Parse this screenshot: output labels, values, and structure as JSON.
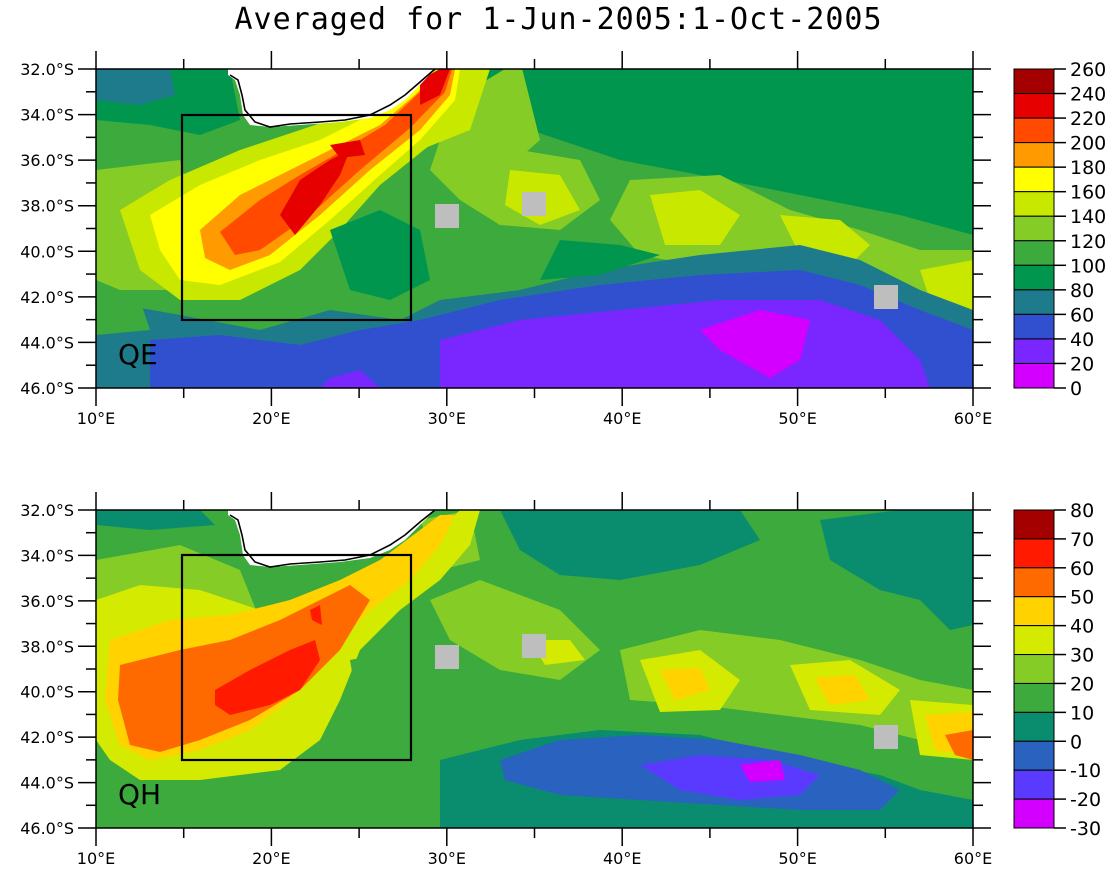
{
  "title": "Averaged for 1-Jun-2005:1-Oct-2005",
  "lon_labels": [
    "10°E",
    "20°E",
    "30°E",
    "40°E",
    "50°E",
    "60°E"
  ],
  "lat_labels": [
    "32.0°S",
    "34.0°S",
    "36.0°S",
    "38.0°S",
    "40.0°S",
    "42.0°S",
    "44.0°S",
    "46.0°S"
  ],
  "box_region": {
    "lon": [
      15,
      28
    ],
    "lat": [
      -34,
      -43
    ]
  },
  "gray_markers": [
    {
      "lon": 30,
      "lat": -38.5
    },
    {
      "lon": 35,
      "lat": -38
    },
    {
      "lon": 55,
      "lat": -42
    }
  ],
  "panels": [
    {
      "label": "QE",
      "colorbar": {
        "levels": [
          "260",
          "240",
          "220",
          "200",
          "180",
          "160",
          "140",
          "120",
          "100",
          "80",
          "60",
          "40",
          "20",
          "0"
        ],
        "colors": [
          "#a50000",
          "#e60000",
          "#ff4a00",
          "#ff9a00",
          "#ffff00",
          "#c8e800",
          "#85cc26",
          "#3caa3c",
          "#00964e",
          "#1e7b8c",
          "#3050d0",
          "#7a26ff",
          "#d400ff"
        ]
      }
    },
    {
      "label": "QH",
      "colorbar": {
        "levels": [
          "80",
          "70",
          "60",
          "50",
          "40",
          "30",
          "20",
          "10",
          "0",
          "-10",
          "-20",
          "-30"
        ],
        "colors": [
          "#a50000",
          "#ff1a00",
          "#ff6a00",
          "#ffd200",
          "#d4ea00",
          "#85cc26",
          "#3caa3c",
          "#0a8c6e",
          "#2a62c0",
          "#5a3aff",
          "#d400ff"
        ]
      }
    }
  ]
}
